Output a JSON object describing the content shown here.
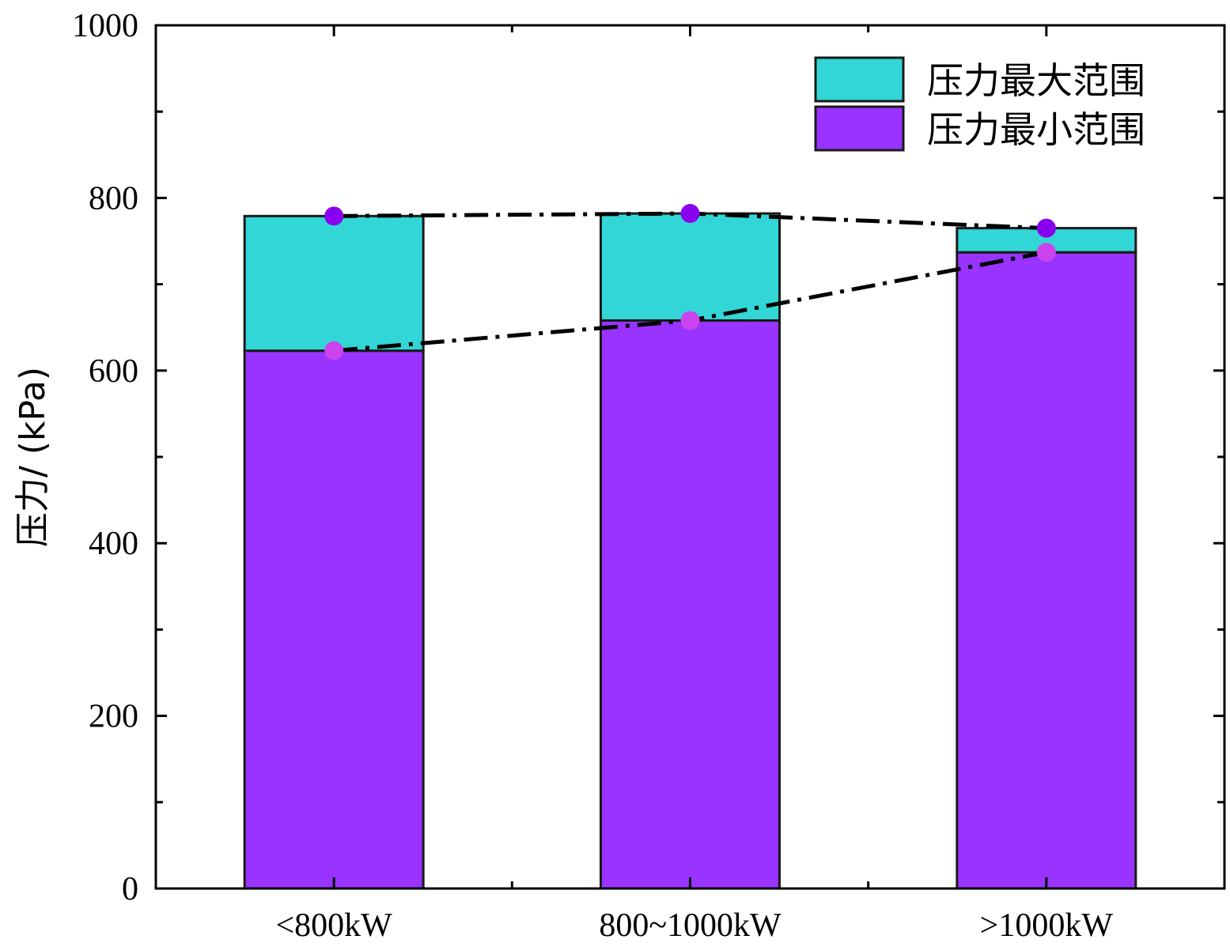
{
  "chart_data": {
    "type": "bar",
    "stacked": true,
    "categories": [
      "<800kW",
      "800~1000kW",
      ">1000kW"
    ],
    "series": [
      {
        "name": "压力最小范围",
        "values": [
          623,
          658,
          737
        ],
        "color": "#9933FF"
      },
      {
        "name": "压力最大范围",
        "values": [
          156,
          124,
          28
        ],
        "color": "#33D6D6"
      }
    ],
    "overlay_lines": [
      {
        "values": [
          779,
          782,
          765
        ],
        "marker_color": "#8800EE"
      },
      {
        "values": [
          623,
          658,
          737
        ],
        "marker_color": "#CC44EE"
      }
    ],
    "ylabel": "压力/ (kPa)",
    "xlabel": "",
    "ylim": [
      0,
      1000
    ],
    "yticks": [
      0,
      200,
      400,
      600,
      800,
      1000
    ],
    "grid": false,
    "legend_position": "top-right"
  }
}
